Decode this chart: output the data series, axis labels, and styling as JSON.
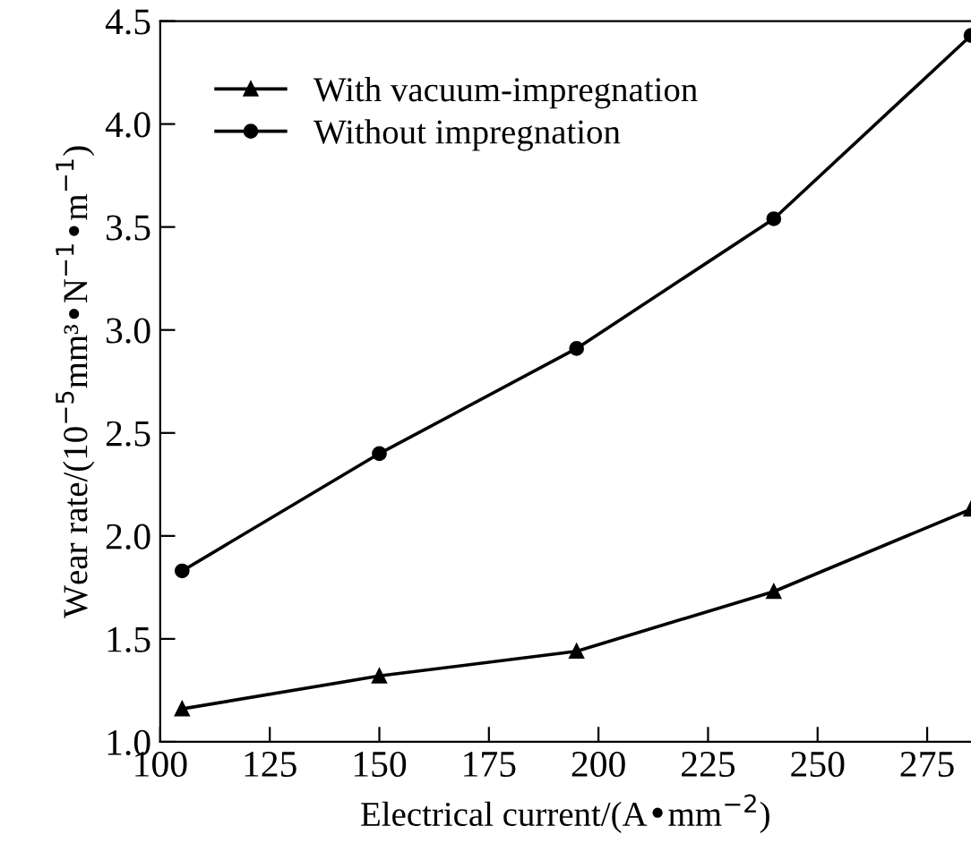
{
  "chart_data": {
    "type": "line",
    "xlabel": "Electrical current/(A•mm$^{−2}$)",
    "ylabel": "Wear rate/(10$^{−5}$mm³•N$^{−1}$•m$^{−1}$)",
    "x": [
      105,
      150,
      195,
      240,
      285
    ],
    "series": [
      {
        "name": "With vacuum-impregnation",
        "color": "#000000",
        "marker": "triangle",
        "values": [
          1.16,
          1.32,
          1.44,
          1.73,
          2.13
        ]
      },
      {
        "name": "Without impregnation",
        "color": "#000000",
        "marker": "circle",
        "values": [
          1.83,
          2.4,
          2.91,
          3.54,
          4.43
        ]
      }
    ],
    "xlim": [
      100,
      285
    ],
    "xticks": [
      100,
      125,
      150,
      175,
      200,
      225,
      250,
      275
    ],
    "ylim": [
      1.0,
      4.5
    ],
    "yticks": [
      {
        "value": 1,
        "label": "1.0"
      },
      1.5,
      {
        "value": 2,
        "label": "2.0"
      },
      2.5,
      {
        "value": 3,
        "label": "3.0"
      },
      3.5,
      {
        "value": 4,
        "label": "4.0"
      },
      4.5
    ],
    "grid": false,
    "legend": "top left",
    "line_style": "solid"
  }
}
